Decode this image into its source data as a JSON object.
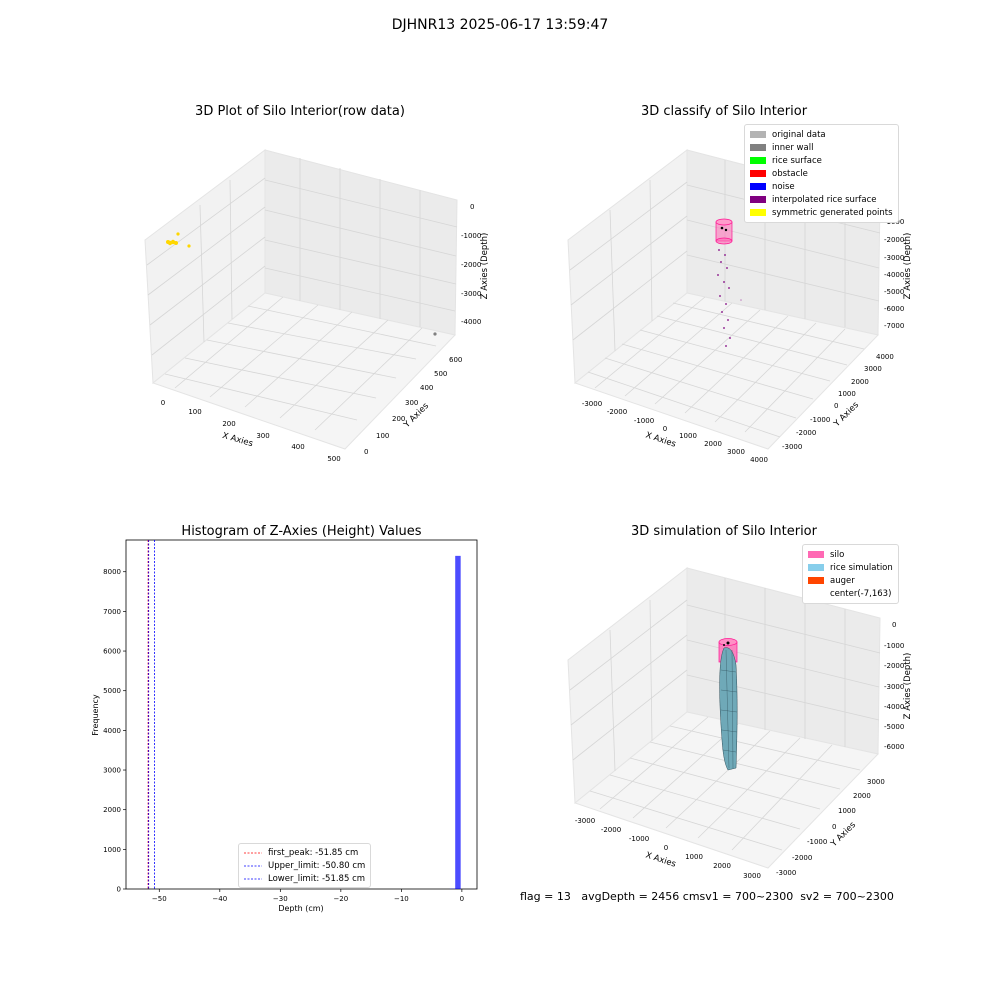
{
  "figure_title": "DJHNR13 2025-06-17 13:59:47",
  "panels": {
    "raw": {
      "title": "3D Plot of Silo Interior(row data)",
      "xlabel": "X Axies",
      "ylabel": "Y Axies",
      "zlabel": "Z Axies (Depth)",
      "xticks": [
        "0",
        "100",
        "200",
        "300",
        "400",
        "500"
      ],
      "yticks": [
        "0",
        "100",
        "200",
        "300",
        "400",
        "500",
        "600"
      ],
      "zticks": [
        "0",
        "-1000",
        "-2000",
        "-3000",
        "-4000"
      ]
    },
    "classify": {
      "title": "3D classify of Silo Interior",
      "xlabel": "X Axies",
      "ylabel": "Y Axies",
      "zlabel": "Z Axies (Depth)",
      "xticks": [
        "-3000",
        "-2000",
        "-1000",
        "0",
        "1000",
        "2000",
        "3000",
        "4000"
      ],
      "yticks": [
        "-3000",
        "-2000",
        "-1000",
        "0",
        "1000",
        "2000",
        "3000",
        "4000"
      ],
      "zticks": [
        "0",
        "-1000",
        "-2000",
        "-3000",
        "-4000",
        "-5000",
        "-6000",
        "-7000"
      ],
      "legend": [
        {
          "label": "original data",
          "color": "#b3b3b3"
        },
        {
          "label": "inner wall",
          "color": "#808080"
        },
        {
          "label": "rice surface",
          "color": "#00ff00"
        },
        {
          "label": "obstacle",
          "color": "#ff0000"
        },
        {
          "label": "noise",
          "color": "#0000ff"
        },
        {
          "label": "interpolated rice surface",
          "color": "#800080"
        },
        {
          "label": "symmetric generated points",
          "color": "#ffff00"
        }
      ]
    },
    "simulation": {
      "title": "3D simulation of Silo Interior",
      "xlabel": "X Axies",
      "ylabel": "Y Axies",
      "zlabel": "Z Axies (Depth)",
      "xticks": [
        "-3000",
        "-2000",
        "-1000",
        "0",
        "1000",
        "2000",
        "3000"
      ],
      "yticks": [
        "-3000",
        "-2000",
        "-1000",
        "0",
        "1000",
        "2000",
        "3000"
      ],
      "zticks": [
        "0",
        "-1000",
        "-2000",
        "-3000",
        "-4000",
        "-5000",
        "-6000"
      ],
      "legend": [
        {
          "label": "silo",
          "color": "#ff69b4"
        },
        {
          "label": "rice simulation",
          "color": "#87ceeb"
        },
        {
          "label": "auger",
          "color": "#ff4500"
        },
        {
          "label": "center(-7,163)",
          "color": "#ffffff"
        }
      ]
    }
  },
  "chart_data": {
    "type": "bar",
    "title": "Histogram of Z-Axies (Height) Values",
    "xlabel": "Depth (cm)",
    "ylabel": "Frequency",
    "xlim": [
      -55.5,
      2.5
    ],
    "ylim": [
      0,
      8800
    ],
    "xticks": [
      -50,
      -40,
      -30,
      -20,
      -10,
      0
    ],
    "yticks": [
      0,
      1000,
      2000,
      3000,
      4000,
      5000,
      6000,
      7000,
      8000
    ],
    "bins": [
      {
        "x0": -2.0,
        "x1": -1.1,
        "count": 8
      },
      {
        "x0": -1.1,
        "x1": -0.2,
        "count": 8400
      }
    ],
    "bar_color": "#0000ff",
    "lines": [
      {
        "label": "first_peak: -51.85 cm",
        "x": -51.85,
        "color": "#ff0000"
      },
      {
        "label": "Upper_limit: -50.80 cm",
        "x": -50.8,
        "color": "#0000ff"
      },
      {
        "label": "Lower_limit: -51.85 cm",
        "x": -51.85,
        "color": "#0000ff"
      }
    ]
  },
  "status_line": "flag = 13   avgDepth = 2456 cmsv1 = 700~2300  sv2 = 700~2300"
}
